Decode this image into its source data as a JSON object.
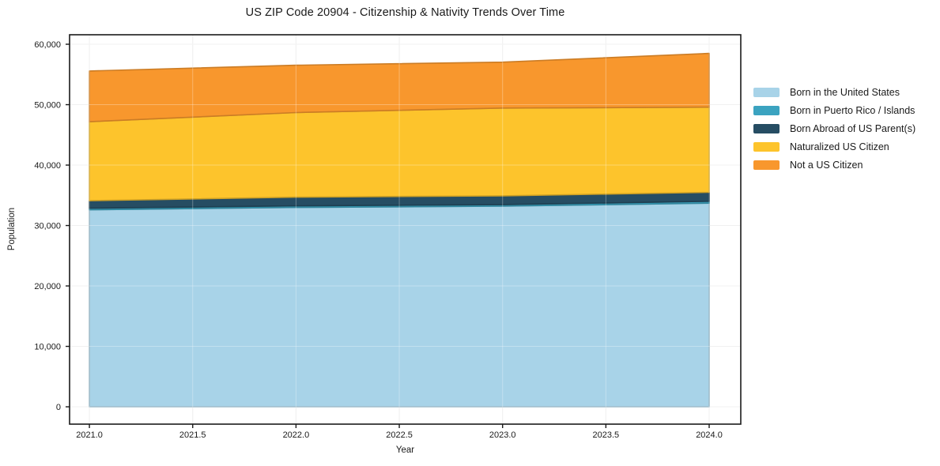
{
  "chart_data": {
    "type": "area",
    "stacked": true,
    "title": "US ZIP Code 20904 - Citizenship & Nativity Trends Over Time",
    "xlabel": "Year",
    "ylabel": "Population",
    "x": [
      2021,
      2022,
      2023,
      2024
    ],
    "series": [
      {
        "name": "Born in the United States",
        "color": "#a8d3e8",
        "values": [
          32600,
          33000,
          33200,
          33700
        ]
      },
      {
        "name": "Born in Puerto Rico / Islands",
        "color": "#3ba3c0",
        "values": [
          260,
          260,
          260,
          310
        ]
      },
      {
        "name": "Born Abroad of US Parent(s)",
        "color": "#264d63",
        "values": [
          1250,
          1440,
          1460,
          1480
        ]
      },
      {
        "name": "Naturalized US Citizen",
        "color": "#fdc42c",
        "values": [
          13070,
          13990,
          14520,
          14090
        ]
      },
      {
        "name": "Not a US Citizen",
        "color": "#f8972d",
        "values": [
          8390,
          7830,
          7600,
          8900
        ]
      }
    ],
    "totals": [
      55570,
      56520,
      57040,
      58480
    ],
    "xlim": [
      2020.904,
      2024.153
    ],
    "ylim": [
      -2870,
      61570
    ],
    "xticks": {
      "values": [
        2021.0,
        2021.5,
        2022.0,
        2022.5,
        2023.0,
        2023.5,
        2024.0
      ],
      "labels": [
        "2021.0",
        "2021.5",
        "2022.0",
        "2022.5",
        "2023.0",
        "2023.5",
        "2024.0"
      ]
    },
    "yticks": {
      "values": [
        0,
        10000,
        20000,
        30000,
        40000,
        50000,
        60000
      ],
      "labels": [
        "0",
        "10,000",
        "20,000",
        "30,000",
        "40,000",
        "50,000",
        "60,000"
      ]
    },
    "grid": true,
    "legend_position": "right of plot, vertical"
  },
  "colors": {
    "text": "#1a1a1a",
    "spine": "#1a1a1a",
    "grid_under": "#eaeaea",
    "grid_over": "rgba(255,255,255,0.30)",
    "background": "#ffffff"
  }
}
